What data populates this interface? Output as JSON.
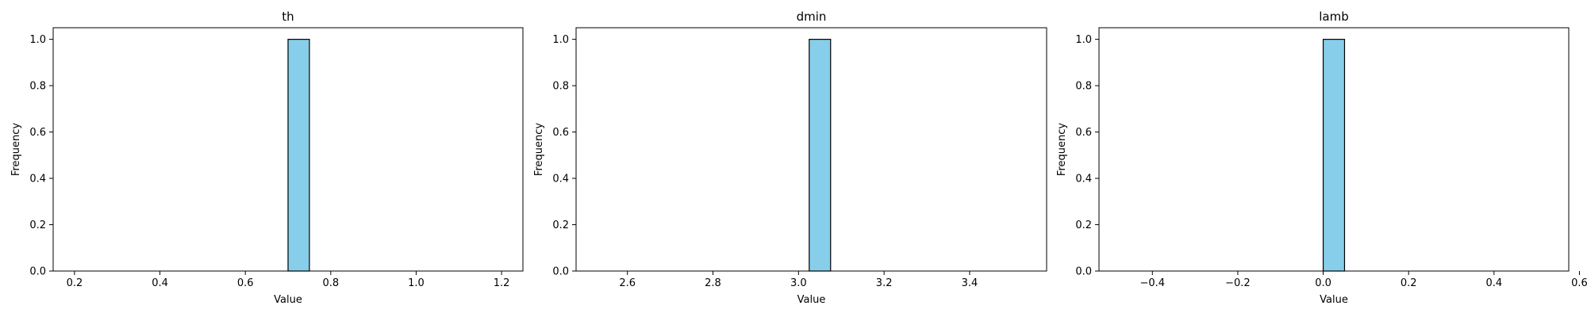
{
  "chart_data": [
    {
      "type": "bar",
      "title": "th",
      "xlabel": "Value",
      "ylabel": "Frequency",
      "xlim": [
        0.15,
        1.25
      ],
      "ylim": [
        0,
        1.05
      ],
      "xticks": [
        "0.2",
        "0.4",
        "0.6",
        "0.8",
        "1.0",
        "1.2"
      ],
      "xtick_values": [
        0.2,
        0.4,
        0.6,
        0.8,
        1.0,
        1.2
      ],
      "yticks": [
        "0.0",
        "0.2",
        "0.4",
        "0.6",
        "0.8",
        "1.0"
      ],
      "ytick_values": [
        0.0,
        0.2,
        0.4,
        0.6,
        0.8,
        1.0
      ],
      "bars": [
        {
          "x0": 0.7,
          "x1": 0.75,
          "value": 1
        }
      ],
      "bar_color": "#87ceeb",
      "edge_color": "#000000"
    },
    {
      "type": "bar",
      "title": "dmin",
      "xlabel": "Value",
      "ylabel": "Frequency",
      "xlim": [
        2.48,
        3.58
      ],
      "ylim": [
        0,
        1.05
      ],
      "xticks": [
        "2.6",
        "2.8",
        "3.0",
        "3.2",
        "3.4"
      ],
      "xtick_values": [
        2.6,
        2.8,
        3.0,
        3.2,
        3.4
      ],
      "yticks": [
        "0.0",
        "0.2",
        "0.4",
        "0.6",
        "0.8",
        "1.0"
      ],
      "ytick_values": [
        0.0,
        0.2,
        0.4,
        0.6,
        0.8,
        1.0
      ],
      "bars": [
        {
          "x0": 3.025,
          "x1": 3.075,
          "value": 1
        }
      ],
      "bar_color": "#87ceeb",
      "edge_color": "#000000"
    },
    {
      "type": "bar",
      "title": "lamb",
      "xlabel": "Value",
      "ylabel": "Frequency",
      "xlim": [
        -0.525,
        0.575
      ],
      "ylim": [
        0,
        1.05
      ],
      "xticks": [
        "−0.4",
        "−0.2",
        "0.0",
        "0.2",
        "0.4",
        "0.6"
      ],
      "xtick_values": [
        -0.4,
        -0.2,
        0.0,
        0.2,
        0.4,
        0.6
      ],
      "yticks": [
        "0.0",
        "0.2",
        "0.4",
        "0.6",
        "0.8",
        "1.0"
      ],
      "ytick_values": [
        0.0,
        0.2,
        0.4,
        0.6,
        0.8,
        1.0
      ],
      "bars": [
        {
          "x0": 0.0,
          "x1": 0.05,
          "value": 1
        }
      ],
      "bar_color": "#87ceeb",
      "edge_color": "#000000"
    }
  ]
}
